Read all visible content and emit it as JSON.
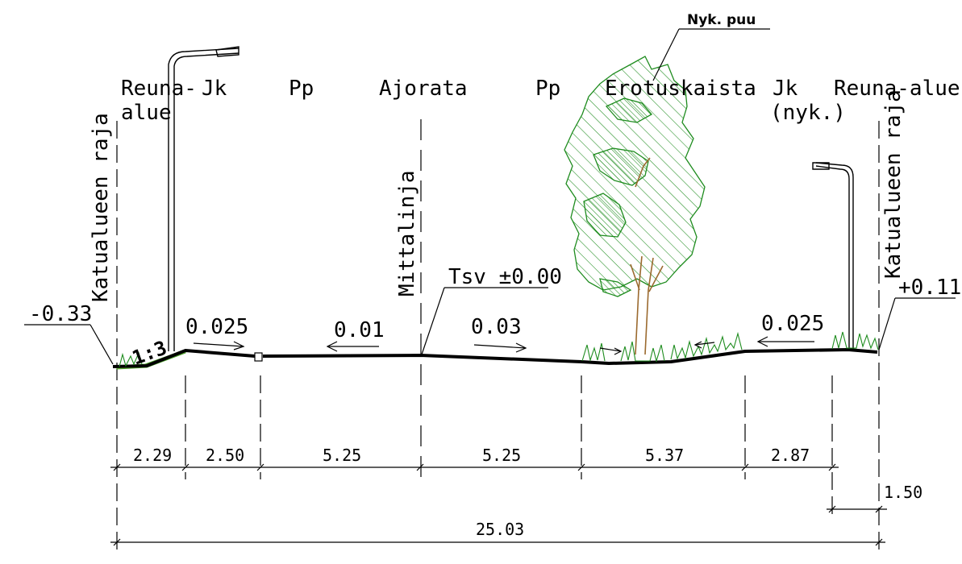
{
  "tree_note": "Nyk. puu",
  "zones": {
    "reuna_alue_left_line1": "Reuna-",
    "reuna_alue_left_line2": "alue",
    "jk_left": "Jk",
    "pp_left": "Pp",
    "ajorata": "Ajorata",
    "pp_right": "Pp",
    "erotuskaista": "Erotuskaista",
    "jk_right_line1": "Jk",
    "jk_right_line2": "(nyk.)",
    "reuna_alue_right": "Reuna-alue"
  },
  "boundary_left": "Katualueen raja",
  "boundary_right": "Katualueen raja",
  "measure_line": "Mittalinja",
  "levels": {
    "left": "-0.33",
    "center": "Tsv ±0.00",
    "right": "+0.11"
  },
  "slope_ratio": "1:3",
  "slopes": {
    "s1": "0.025",
    "s2": "0.01",
    "s3": "0.03",
    "s4": "0.025"
  },
  "widths": [
    "2.29",
    "2.50",
    "5.25",
    "5.25",
    "5.37",
    "2.87"
  ],
  "right_edge_width": "1.50",
  "total_width": "25.03",
  "colors": {
    "tree_green": "#1e8c1e",
    "trunk_brown": "#9b6a2f",
    "slope_grass": "#8fd14f"
  }
}
